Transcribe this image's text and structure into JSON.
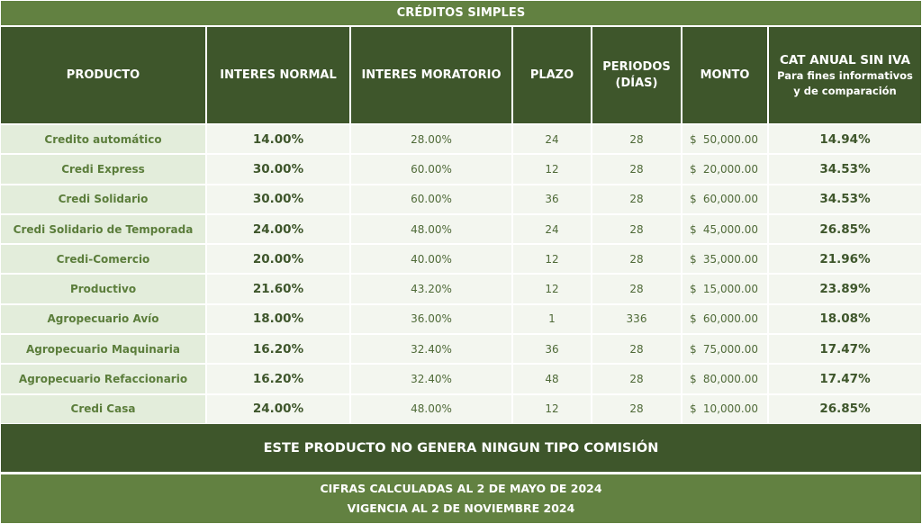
{
  "title": "CRÉDITOS SIMPLES",
  "columns": {
    "producto": "PRODUCTO",
    "interes_normal": "INTERES NORMAL",
    "interes_moratorio": "INTERES MORATORIO",
    "plazo": "PLAZO",
    "periodos_line1": "PERIODOS",
    "periodos_line2": "(DÍAS)",
    "monto": "MONTO",
    "cat_line1": "CAT ANUAL SIN IVA",
    "cat_line2": "Para fines informativos",
    "cat_line3": "y de comparación"
  },
  "currency_symbol": "$",
  "rows": [
    {
      "producto": "Credito automático",
      "interes_normal": "14.00%",
      "interes_moratorio": "28.00%",
      "plazo": "24",
      "periodos": "28",
      "monto": "50,000.00",
      "cat": "14.94%"
    },
    {
      "producto": "Credi Express",
      "interes_normal": "30.00%",
      "interes_moratorio": "60.00%",
      "plazo": "12",
      "periodos": "28",
      "monto": "20,000.00",
      "cat": "34.53%"
    },
    {
      "producto": "Credi Solidario",
      "interes_normal": "30.00%",
      "interes_moratorio": "60.00%",
      "plazo": "36",
      "periodos": "28",
      "monto": "60,000.00",
      "cat": "34.53%"
    },
    {
      "producto": "Credi Solidario de Temporada",
      "interes_normal": "24.00%",
      "interes_moratorio": "48.00%",
      "plazo": "24",
      "periodos": "28",
      "monto": "45,000.00",
      "cat": "26.85%"
    },
    {
      "producto": "Credi-Comercio",
      "interes_normal": "20.00%",
      "interes_moratorio": "40.00%",
      "plazo": "12",
      "periodos": "28",
      "monto": "35,000.00",
      "cat": "21.96%"
    },
    {
      "producto": "Productivo",
      "interes_normal": "21.60%",
      "interes_moratorio": "43.20%",
      "plazo": "12",
      "periodos": "28",
      "monto": "15,000.00",
      "cat": "23.89%"
    },
    {
      "producto": "Agropecuario Avío",
      "interes_normal": "18.00%",
      "interes_moratorio": "36.00%",
      "plazo": "1",
      "periodos": "336",
      "monto": "60,000.00",
      "cat": "18.08%"
    },
    {
      "producto": "Agropecuario Maquinaria",
      "interes_normal": "16.20%",
      "interes_moratorio": "32.40%",
      "plazo": "36",
      "periodos": "28",
      "monto": "75,000.00",
      "cat": "17.47%"
    },
    {
      "producto": "Agropecuario Refaccionario",
      "interes_normal": "16.20%",
      "interes_moratorio": "32.40%",
      "plazo": "48",
      "periodos": "28",
      "monto": "80,000.00",
      "cat": "17.47%"
    },
    {
      "producto": "Credi Casa",
      "interes_normal": "24.00%",
      "interes_moratorio": "48.00%",
      "plazo": "12",
      "periodos": "28",
      "monto": "10,000.00",
      "cat": "26.85%"
    }
  ],
  "banner": "ESTE PRODUCTO NO GENERA NINGUN TIPO COMISIÓN",
  "footer": {
    "line1": "CIFRAS CALCULADAS AL 2 DE MAYO DE 2024",
    "line2": "VIGENCIA AL 2 DE NOVIEMBRE 2024"
  },
  "colors": {
    "light_green": "#628141",
    "dark_green": "#3e562b",
    "product_cell_bg": "#e3eddb",
    "data_cell_bg": "#f3f6ef"
  }
}
